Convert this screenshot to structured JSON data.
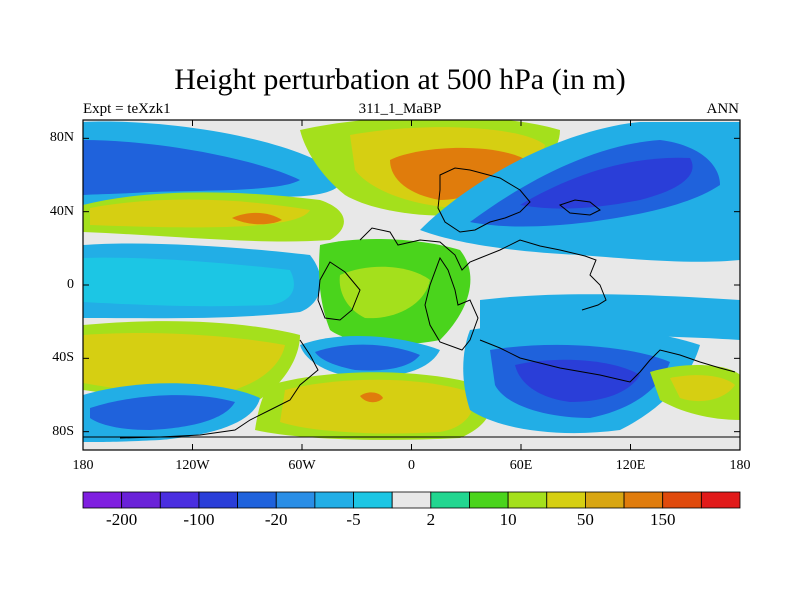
{
  "title": "Height perturbation at 500 hPa (in m)",
  "subtitle_left": "Expt = teXzk1",
  "subtitle_center": "311_1_MaBP",
  "subtitle_right": "ANN",
  "lat_ticks": [
    {
      "label": "80N",
      "lat": 80
    },
    {
      "label": "40N",
      "lat": 40
    },
    {
      "label": "0",
      "lat": 0
    },
    {
      "label": "40S",
      "lat": -40
    },
    {
      "label": "80S",
      "lat": -80
    }
  ],
  "lon_ticks": [
    {
      "label": "180",
      "lon": -180
    },
    {
      "label": "120W",
      "lon": -120
    },
    {
      "label": "60W",
      "lon": -60
    },
    {
      "label": "0",
      "lon": 0
    },
    {
      "label": "60E",
      "lon": 60
    },
    {
      "label": "120E",
      "lon": 120
    },
    {
      "label": "180",
      "lon": 180
    }
  ],
  "map_extent": {
    "lon": [
      -180,
      180
    ],
    "lat": [
      -90,
      90
    ]
  },
  "colorbar": {
    "colors": [
      "#7f1fe0",
      "#6a22d8",
      "#4a2ee0",
      "#2a3ed8",
      "#1f62dc",
      "#2a8ee6",
      "#22aee6",
      "#1cc6e4",
      "#e8e8e8",
      "#22d690",
      "#4ad41c",
      "#a4e01c",
      "#d6cf12",
      "#d8a612",
      "#e07c0c",
      "#e04a0c",
      "#e11a1a"
    ],
    "labels": [
      {
        "text": "-200",
        "boundary": 1
      },
      {
        "text": "-100",
        "boundary": 3
      },
      {
        "text": "-20",
        "boundary": 5
      },
      {
        "text": "-5",
        "boundary": 7
      },
      {
        "text": "2",
        "boundary": 9
      },
      {
        "text": "10",
        "boundary": 11
      },
      {
        "text": "50",
        "boundary": 13
      },
      {
        "text": "150",
        "boundary": 15
      }
    ]
  },
  "chart_data": {
    "type": "heatmap",
    "title": "Height perturbation at 500 hPa (in m)",
    "variable": "Height perturbation",
    "units": "m",
    "level_hPa": 500,
    "experiment": "teXzk1",
    "period": "311_1_MaBP",
    "season": "ANN",
    "x_ticks": [
      "180",
      "120W",
      "60W",
      "0",
      "60E",
      "120E",
      "180"
    ],
    "y_ticks": [
      "80N",
      "40N",
      "0",
      "40S",
      "80S"
    ],
    "legend_values": [
      -200,
      -100,
      -20,
      -5,
      2,
      10,
      50,
      150
    ],
    "features": [
      {
        "name": "positive maximum over northern high-latitude landmass",
        "lon": 30,
        "lat": 55,
        "value_range": "50 to 150"
      },
      {
        "name": "positive band over North Pacific",
        "lon": -120,
        "lat": 40,
        "value_range": "50 to 150"
      },
      {
        "name": "negative minimum over North Pacific east",
        "lon": 110,
        "lat": 45,
        "value_range": "-100 to -200"
      },
      {
        "name": "negative band over northern high latitudes west",
        "lon": -140,
        "lat": 65,
        "value_range": "-20 to -100"
      },
      {
        "name": "positive band over southern mid-latitudes",
        "lon": -20,
        "lat": -60,
        "value_range": "50 to 150"
      },
      {
        "name": "negative minimum south-east",
        "lon": 80,
        "lat": -55,
        "value_range": "-100 to -200"
      },
      {
        "name": "negative minimum south-west",
        "lon": -140,
        "lat": -70,
        "value_range": "-20 to -100"
      },
      {
        "name": "weak positive over tropics",
        "lon": 10,
        "lat": 0,
        "value_range": "2 to 10"
      }
    ]
  }
}
